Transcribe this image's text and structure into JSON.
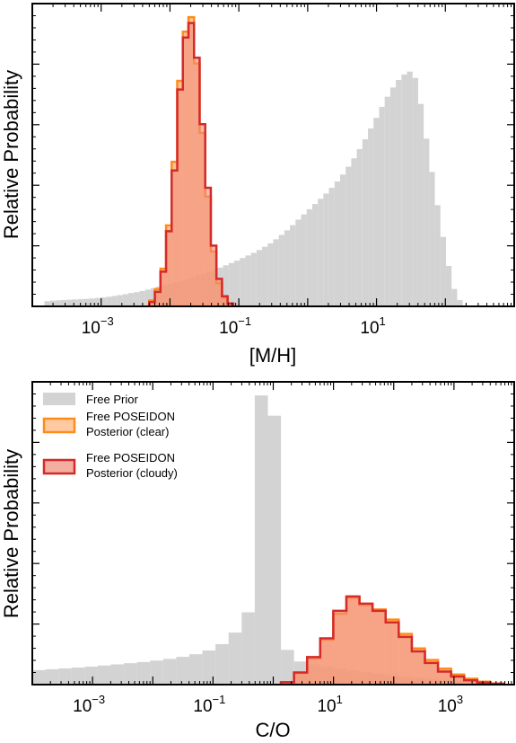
{
  "colors": {
    "prior_fill": "#d3d3d3",
    "clear_edge": "#ff8c1a",
    "clear_fill": "#ffb27a",
    "cloudy_edge": "#d42a2a",
    "cloudy_fill": "#f08c78"
  },
  "chart_data": [
    {
      "type": "histogram",
      "xlabel": "[M/H]",
      "ylabel": "Relative Probability",
      "xscale": "log",
      "xlim": [
        0.0001,
        1000
      ],
      "xticks": [
        {
          "base": "10",
          "exp": "−3",
          "value": 0.001
        },
        {
          "base": "10",
          "exp": "−1",
          "value": 0.1
        },
        {
          "base": "10",
          "exp": "1",
          "value": 10
        }
      ],
      "ylim": [
        0,
        1
      ],
      "legend": false,
      "series": [
        {
          "role": "prior",
          "bins": [
            [
              0.00015,
              0.00018,
              0.018
            ],
            [
              0.00018,
              0.00022,
              0.02
            ],
            [
              0.00022,
              0.00026,
              0.021
            ],
            [
              0.00026,
              0.00032,
              0.022
            ],
            [
              0.00032,
              0.00038,
              0.023
            ],
            [
              0.00038,
              0.00046,
              0.024
            ],
            [
              0.00046,
              0.00056,
              0.025
            ],
            [
              0.00056,
              0.00067,
              0.026
            ],
            [
              0.00067,
              0.00081,
              0.027
            ],
            [
              0.00081,
              0.00098,
              0.029
            ],
            [
              0.00098,
              0.00118,
              0.031
            ],
            [
              0.00118,
              0.00142,
              0.033
            ],
            [
              0.00142,
              0.00171,
              0.036
            ],
            [
              0.00171,
              0.00206,
              0.039
            ],
            [
              0.00206,
              0.00248,
              0.042
            ],
            [
              0.00248,
              0.00299,
              0.046
            ],
            [
              0.00299,
              0.0036,
              0.049
            ],
            [
              0.0036,
              0.00434,
              0.053
            ],
            [
              0.00434,
              0.00523,
              0.058
            ],
            [
              0.00523,
              0.0063,
              0.063
            ],
            [
              0.0063,
              0.00759,
              0.068
            ],
            [
              0.00759,
              0.00915,
              0.073
            ],
            [
              0.00915,
              0.01102,
              0.078
            ],
            [
              0.01102,
              0.01328,
              0.083
            ],
            [
              0.01328,
              0.016,
              0.088
            ],
            [
              0.016,
              0.01928,
              0.094
            ],
            [
              0.01928,
              0.02323,
              0.1
            ],
            [
              0.02323,
              0.02799,
              0.107
            ],
            [
              0.02799,
              0.03373,
              0.113
            ],
            [
              0.03373,
              0.04064,
              0.12
            ],
            [
              0.04064,
              0.04897,
              0.127
            ],
            [
              0.04897,
              0.059,
              0.134
            ],
            [
              0.059,
              0.07109,
              0.142
            ],
            [
              0.07109,
              0.08566,
              0.15
            ],
            [
              0.08566,
              0.10322,
              0.158
            ],
            [
              0.10322,
              0.12437,
              0.167
            ],
            [
              0.12437,
              0.14986,
              0.176
            ],
            [
              0.14986,
              0.18057,
              0.185
            ],
            [
              0.18057,
              0.21757,
              0.195
            ],
            [
              0.21757,
              0.26216,
              0.206
            ],
            [
              0.26216,
              0.31589,
              0.218
            ],
            [
              0.31589,
              0.38062,
              0.232
            ],
            [
              0.38062,
              0.45863,
              0.247
            ],
            [
              0.45863,
              0.55262,
              0.263
            ],
            [
              0.55262,
              0.66587,
              0.281
            ],
            [
              0.66587,
              0.80233,
              0.3
            ],
            [
              0.80233,
              0.96675,
              0.318
            ],
            [
              0.96675,
              1.16487,
              0.336
            ],
            [
              1.16487,
              1.40358,
              0.354
            ],
            [
              1.40358,
              1.69122,
              0.372
            ],
            [
              1.69122,
              2.0378,
              0.39
            ],
            [
              2.0378,
              2.45541,
              0.41
            ],
            [
              2.45541,
              2.9586,
              0.432
            ],
            [
              2.9586,
              3.56491,
              0.456
            ],
            [
              3.56491,
              4.29545,
              0.483
            ],
            [
              4.29545,
              5.17571,
              0.512
            ],
            [
              5.17571,
              6.23636,
              0.544
            ],
            [
              6.23636,
              7.51437,
              0.578
            ],
            [
              7.51437,
              9.05428,
              0.615
            ],
            [
              9.05428,
              10.90981,
              0.652
            ],
            [
              10.90981,
              13.14558,
              0.69
            ],
            [
              13.14558,
              15.83952,
              0.725
            ],
            [
              15.83952,
              19.08556,
              0.757
            ],
            [
              19.08556,
              22.99683,
              0.783
            ],
            [
              22.99683,
              27.70963,
              0.802
            ],
            [
              27.70963,
              33.3883,
              0.812
            ],
            [
              33.3883,
              40.23065,
              0.79
            ],
            [
              40.23065,
              48.47521,
              0.7
            ],
            [
              48.47521,
              58.40907,
              0.58
            ],
            [
              58.40907,
              70.37815,
              0.465
            ],
            [
              70.37815,
              84.80014,
              0.35
            ],
            [
              84.80014,
              102.17785,
              0.24
            ],
            [
              102.17785,
              123.11638,
              0.14
            ],
            [
              123.11638,
              148.3461,
              0.06
            ],
            [
              148.3461,
              178.74588,
              0.022
            ]
          ]
        },
        {
          "role": "clear",
          "bins": [
            [
              0.005,
              0.00603,
              0.02
            ],
            [
              0.00603,
              0.00727,
              0.06
            ],
            [
              0.00727,
              0.00877,
              0.13
            ],
            [
              0.00877,
              0.01057,
              0.28
            ],
            [
              0.01057,
              0.01275,
              0.5
            ],
            [
              0.01275,
              0.01537,
              0.78
            ],
            [
              0.01537,
              0.01854,
              0.95
            ],
            [
              0.01854,
              0.02235,
              1.0
            ],
            [
              0.02235,
              0.02695,
              0.84
            ],
            [
              0.02695,
              0.0325,
              0.6
            ],
            [
              0.0325,
              0.03919,
              0.38
            ],
            [
              0.03919,
              0.04725,
              0.19
            ],
            [
              0.04725,
              0.05698,
              0.08
            ],
            [
              0.05698,
              0.0687,
              0.03
            ],
            [
              0.0687,
              0.08284,
              0.008
            ]
          ]
        },
        {
          "role": "cloudy",
          "bins": [
            [
              0.005,
              0.00603,
              0.015
            ],
            [
              0.00603,
              0.00727,
              0.05
            ],
            [
              0.00727,
              0.00877,
              0.12
            ],
            [
              0.00877,
              0.01057,
              0.26
            ],
            [
              0.01057,
              0.01275,
              0.47
            ],
            [
              0.01275,
              0.01537,
              0.75
            ],
            [
              0.01537,
              0.01854,
              0.93
            ],
            [
              0.01854,
              0.02235,
              0.98
            ],
            [
              0.02235,
              0.02695,
              0.86
            ],
            [
              0.02695,
              0.0325,
              0.63
            ],
            [
              0.0325,
              0.03919,
              0.41
            ],
            [
              0.03919,
              0.04725,
              0.21
            ],
            [
              0.04725,
              0.05698,
              0.095
            ],
            [
              0.05698,
              0.0687,
              0.035
            ],
            [
              0.0687,
              0.08284,
              0.01
            ]
          ]
        }
      ]
    },
    {
      "type": "histogram",
      "xlabel": "C/O",
      "ylabel": "Relative Probability",
      "xscale": "log",
      "xlim": [
        0.0001,
        10000
      ],
      "xticks": [
        {
          "base": "10",
          "exp": "−3",
          "value": 0.001
        },
        {
          "base": "10",
          "exp": "−1",
          "value": 0.1
        },
        {
          "base": "10",
          "exp": "1",
          "value": 10
        },
        {
          "base": "10",
          "exp": "3",
          "value": 1000
        }
      ],
      "ylim": [
        0,
        1
      ],
      "legend": true,
      "legend_position": "top-left",
      "series": [
        {
          "role": "prior",
          "name": "Free Prior",
          "bins": [
            [
              0.0001,
              0.000165,
              0.05
            ],
            [
              0.000165,
              0.000272,
              0.053
            ],
            [
              0.000272,
              0.000448,
              0.056
            ],
            [
              0.000448,
              0.000739,
              0.059
            ],
            [
              0.000739,
              0.001219,
              0.062
            ],
            [
              0.001219,
              0.00201,
              0.066
            ],
            [
              0.00201,
              0.003314,
              0.07
            ],
            [
              0.003314,
              0.005466,
              0.074
            ],
            [
              0.005466,
              0.009015,
              0.078
            ],
            [
              0.009015,
              0.014867,
              0.083
            ],
            [
              0.014867,
              0.024519,
              0.089
            ],
            [
              0.024519,
              0.040437,
              0.096
            ],
            [
              0.040437,
              0.066689,
              0.105
            ],
            [
              0.066689,
              0.109984,
              0.118
            ],
            [
              0.109984,
              0.181387,
              0.14
            ],
            [
              0.181387,
              0.299148,
              0.18
            ],
            [
              0.299148,
              0.493359,
              0.25
            ],
            [
              0.493359,
              0.813637,
              1.0
            ],
            [
              0.813637,
              1.341839,
              0.93
            ],
            [
              1.341839,
              2.212924,
              0.12
            ],
            [
              2.212924,
              3.649432,
              0.08
            ],
            [
              3.649432,
              6.018511,
              0.07
            ],
            [
              6.018511,
              9.925551,
              0.062
            ],
            [
              9.925551,
              16.369046,
              0.055
            ],
            [
              16.369046,
              26.995322,
              0.049
            ],
            [
              26.995322,
              44.519968,
              0.043
            ],
            [
              44.519968,
              73.421264,
              0.038
            ],
            [
              73.421264,
              121.084498,
              0.033
            ],
            [
              121.084498,
              199.690135,
              0.028
            ],
            [
              199.690135,
              329.322651,
              0.024
            ],
            [
              329.322651,
              543.111143,
              0.02
            ],
            [
              543.111143,
              895.686127,
              0.016
            ],
            [
              895.686127,
              1477.149286,
              0.013
            ],
            [
              1477.149286,
              2436.068291,
              0.01
            ],
            [
              2436.068291,
              4017.622034,
              0.008
            ],
            [
              4017.622034,
              6625.947066,
              0.006
            ]
          ]
        },
        {
          "role": "clear",
          "name": "Free POSEIDON Posterior (clear)",
          "bins": [
            [
              1.341839,
              2.212924,
              0.008
            ],
            [
              2.212924,
              3.649432,
              0.04
            ],
            [
              3.649432,
              6.018511,
              0.09
            ],
            [
              6.018511,
              9.925551,
              0.155
            ],
            [
              9.925551,
              16.369046,
              0.245
            ],
            [
              16.369046,
              26.995322,
              0.3
            ],
            [
              26.995322,
              44.519968,
              0.275
            ],
            [
              44.519968,
              73.421264,
              0.26
            ],
            [
              73.421264,
              121.084498,
              0.225
            ],
            [
              121.084498,
              199.690135,
              0.175
            ],
            [
              199.690135,
              329.322651,
              0.125
            ],
            [
              329.322651,
              543.111143,
              0.085
            ],
            [
              543.111143,
              895.686127,
              0.055
            ],
            [
              895.686127,
              1477.149286,
              0.035
            ],
            [
              1477.149286,
              2436.068291,
              0.02
            ],
            [
              2436.068291,
              4017.622034,
              0.01
            ],
            [
              4017.622034,
              6625.947066,
              0.004
            ]
          ]
        },
        {
          "role": "cloudy",
          "name": "Free POSEIDON Posterior (cloudy)",
          "bins": [
            [
              1.341839,
              2.212924,
              0.008
            ],
            [
              2.212924,
              3.649432,
              0.042
            ],
            [
              3.649432,
              6.018511,
              0.095
            ],
            [
              6.018511,
              9.925551,
              0.16
            ],
            [
              9.925551,
              16.369046,
              0.255
            ],
            [
              16.369046,
              26.995322,
              0.305
            ],
            [
              26.995322,
              44.519968,
              0.28
            ],
            [
              44.519968,
              73.421264,
              0.255
            ],
            [
              73.421264,
              121.084498,
              0.215
            ],
            [
              121.084498,
              199.690135,
              0.165
            ],
            [
              199.690135,
              329.322651,
              0.115
            ],
            [
              329.322651,
              543.111143,
              0.075
            ],
            [
              543.111143,
              895.686127,
              0.045
            ],
            [
              895.686127,
              1477.149286,
              0.028
            ],
            [
              1477.149286,
              2436.068291,
              0.015
            ],
            [
              2436.068291,
              4017.622034,
              0.007
            ],
            [
              4017.622034,
              6625.947066,
              0.003
            ]
          ]
        }
      ]
    }
  ],
  "legend": {
    "prior_label": "Free Prior",
    "clear_label_line1": "Free POSEIDON",
    "clear_label_line2": "Posterior (clear)",
    "cloudy_label_line1": "Free POSEIDON",
    "cloudy_label_line2": "Posterior (cloudy)"
  }
}
